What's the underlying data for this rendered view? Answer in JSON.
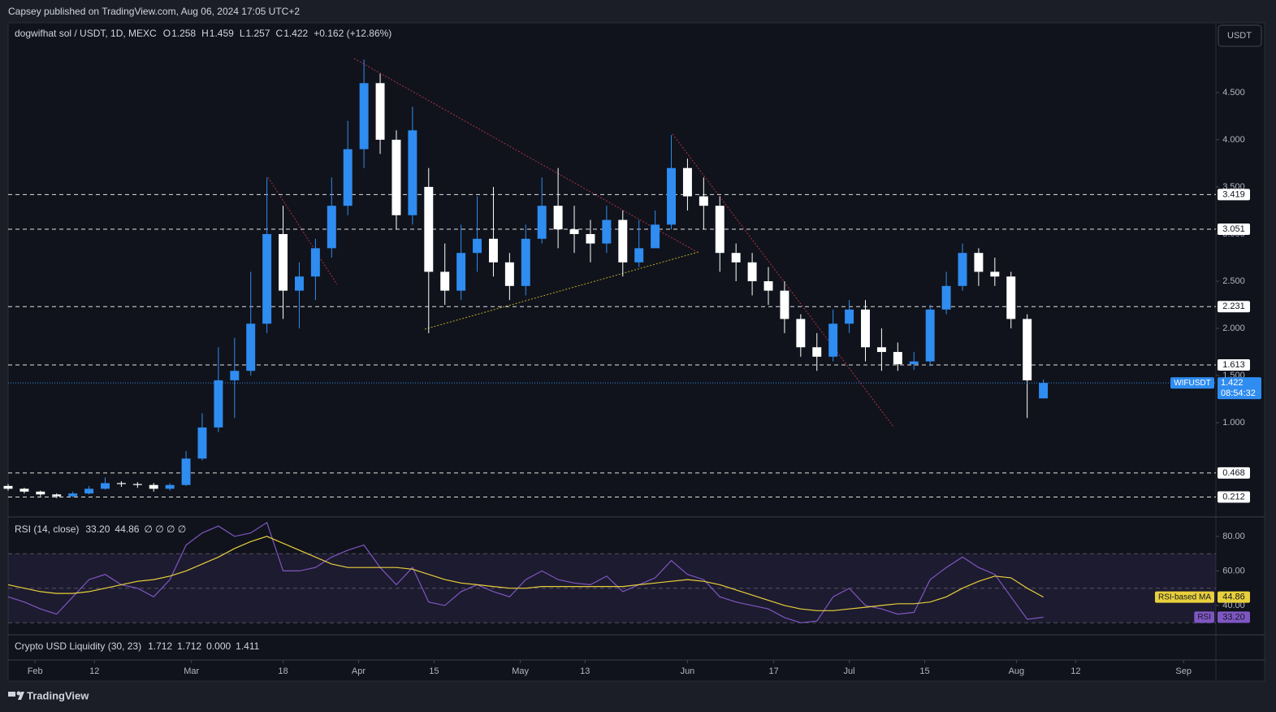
{
  "header": {
    "publisher": "Capsey published on TradingView.com, Aug 06, 2024 17:05 UTC+2",
    "currency_button": "USDT"
  },
  "footer": {
    "brand": "TradingView"
  },
  "chart_data": [
    {
      "type": "candlestick",
      "title": "dogwifhat sol / USDT, 1D, MEXC",
      "ohlc_letters": [
        "O",
        "H",
        "L",
        "C"
      ],
      "change_label": "+0.162 (+12.86%)",
      "symbol": "WIFUSDT",
      "countdown": "08:54:32",
      "up_color": "#2f8cf0",
      "down_color": "#ffffff",
      "x": [
        "2024-01-27",
        "2024-01-30",
        "2024-02-02",
        "2024-02-05",
        "2024-02-08",
        "2024-02-11",
        "2024-02-14",
        "2024-02-17",
        "2024-02-20",
        "2024-02-23",
        "2024-02-26",
        "2024-02-29",
        "2024-03-03",
        "2024-03-06",
        "2024-03-09",
        "2024-03-12",
        "2024-03-15",
        "2024-03-18",
        "2024-03-21",
        "2024-03-24",
        "2024-03-27",
        "2024-03-30",
        "2024-04-02",
        "2024-04-05",
        "2024-04-08",
        "2024-04-11",
        "2024-04-14",
        "2024-04-17",
        "2024-04-20",
        "2024-04-23",
        "2024-04-26",
        "2024-04-29",
        "2024-05-02",
        "2024-05-05",
        "2024-05-08",
        "2024-05-11",
        "2024-05-14",
        "2024-05-17",
        "2024-05-20",
        "2024-05-23",
        "2024-05-26",
        "2024-05-29",
        "2024-06-01",
        "2024-06-04",
        "2024-06-07",
        "2024-06-10",
        "2024-06-13",
        "2024-06-16",
        "2024-06-19",
        "2024-06-22",
        "2024-06-25",
        "2024-06-28",
        "2024-07-01",
        "2024-07-04",
        "2024-07-07",
        "2024-07-10",
        "2024-07-13",
        "2024-07-16",
        "2024-07-19",
        "2024-07-22",
        "2024-07-25",
        "2024-07-28",
        "2024-07-31",
        "2024-08-03",
        "2024-08-06"
      ],
      "open": [
        0.33,
        0.3,
        0.27,
        0.24,
        0.22,
        0.25,
        0.3,
        0.36,
        0.35,
        0.34,
        0.3,
        0.34,
        0.62,
        0.95,
        1.45,
        1.55,
        2.05,
        3.0,
        2.4,
        2.55,
        2.85,
        3.3,
        3.9,
        4.6,
        4.0,
        3.2,
        3.5,
        2.6,
        2.4,
        2.8,
        2.95,
        2.7,
        2.45,
        2.95,
        3.3,
        3.05,
        3.0,
        2.9,
        3.15,
        2.7,
        2.85,
        3.1,
        3.7,
        3.4,
        3.3,
        2.8,
        2.7,
        2.5,
        2.4,
        2.1,
        1.8,
        1.7,
        2.05,
        2.2,
        1.8,
        1.75,
        1.62,
        1.65,
        2.2,
        2.45,
        2.8,
        2.6,
        2.55,
        2.1,
        1.258
      ],
      "high": [
        0.35,
        0.31,
        0.28,
        0.25,
        0.27,
        0.33,
        0.42,
        0.38,
        0.37,
        0.36,
        0.36,
        0.7,
        1.1,
        1.8,
        1.9,
        2.6,
        3.6,
        3.3,
        2.7,
        2.95,
        3.6,
        4.2,
        4.85,
        4.7,
        4.1,
        4.35,
        3.7,
        2.9,
        3.1,
        3.4,
        3.5,
        2.8,
        3.1,
        3.6,
        3.7,
        3.3,
        3.15,
        3.3,
        3.25,
        3.15,
        3.25,
        4.05,
        3.8,
        3.6,
        3.4,
        2.9,
        2.8,
        2.65,
        2.5,
        2.15,
        1.95,
        2.2,
        2.3,
        2.3,
        2.0,
        1.85,
        1.75,
        2.25,
        2.6,
        2.9,
        2.85,
        2.75,
        2.6,
        2.15,
        1.459
      ],
      "low": [
        0.28,
        0.25,
        0.22,
        0.2,
        0.21,
        0.24,
        0.29,
        0.32,
        0.31,
        0.27,
        0.28,
        0.33,
        0.6,
        0.9,
        1.05,
        1.5,
        1.95,
        2.1,
        2.0,
        2.3,
        2.75,
        3.2,
        3.7,
        3.85,
        3.05,
        3.1,
        1.95,
        2.25,
        2.3,
        2.6,
        2.55,
        2.3,
        2.35,
        2.9,
        2.85,
        2.8,
        2.7,
        2.8,
        2.55,
        2.65,
        2.9,
        3.05,
        3.25,
        3.05,
        2.6,
        2.5,
        2.35,
        2.25,
        1.95,
        1.7,
        1.55,
        1.65,
        1.95,
        1.65,
        1.55,
        1.55,
        1.56,
        1.6,
        2.15,
        2.4,
        2.45,
        2.45,
        2.0,
        1.05,
        1.257
      ],
      "close": [
        0.3,
        0.27,
        0.24,
        0.22,
        0.25,
        0.3,
        0.36,
        0.35,
        0.34,
        0.3,
        0.34,
        0.62,
        0.95,
        1.45,
        1.55,
        2.05,
        3.0,
        2.4,
        2.55,
        2.85,
        3.3,
        3.9,
        4.6,
        4.0,
        3.2,
        4.1,
        2.6,
        2.4,
        2.8,
        2.95,
        2.7,
        2.45,
        2.95,
        3.3,
        3.05,
        3.0,
        2.9,
        3.15,
        2.7,
        2.85,
        3.1,
        3.7,
        3.4,
        3.3,
        2.8,
        2.7,
        2.5,
        2.4,
        2.1,
        1.8,
        1.7,
        2.05,
        2.2,
        1.8,
        1.75,
        1.62,
        1.65,
        2.2,
        2.45,
        2.8,
        2.6,
        2.55,
        2.1,
        1.45,
        1.422
      ],
      "levels": [
        3.419,
        3.051,
        2.231,
        1.613,
        0.468,
        0.212
      ],
      "ylim": [
        0.01,
        5.24
      ],
      "yticks": [
        {
          "value": 1,
          "label": "1.000"
        },
        {
          "value": 1.5,
          "label": "1.500"
        },
        {
          "value": 2,
          "label": "2.000"
        },
        {
          "value": 2.5,
          "label": "2.500"
        },
        {
          "value": 3,
          "label": "3.000"
        },
        {
          "value": 3.5,
          "label": "3.500"
        },
        {
          "value": 4,
          "label": "4.000"
        },
        {
          "value": 4.5,
          "label": "4.500"
        }
      ],
      "xlim": [
        "2024-01-27",
        "2024-09-07"
      ],
      "xticks": [
        {
          "value": "2024-02-01",
          "label": "Feb"
        },
        {
          "value": "2024-02-12",
          "label": "12"
        },
        {
          "value": "2024-03-01",
          "label": "Mar"
        },
        {
          "value": "2024-03-18",
          "label": "18"
        },
        {
          "value": "2024-04-01",
          "label": "Apr"
        },
        {
          "value": "2024-04-15",
          "label": "15"
        },
        {
          "value": "2024-05-01",
          "label": "May"
        },
        {
          "value": "2024-05-13",
          "label": "13"
        },
        {
          "value": "2024-06-01",
          "label": "Jun"
        },
        {
          "value": "2024-06-17",
          "label": "17"
        },
        {
          "value": "2024-07-01",
          "label": "Jul"
        },
        {
          "value": "2024-07-15",
          "label": "15"
        },
        {
          "value": "2024-08-01",
          "label": "Aug"
        },
        {
          "value": "2024-08-12",
          "label": "12"
        },
        {
          "value": "2024-09-01",
          "label": "Sep"
        }
      ]
    },
    {
      "type": "line",
      "title": "RSI (14, close)",
      "symbols": "∅ ∅ ∅ ∅",
      "x": [
        "2024-01-27",
        "2024-01-30",
        "2024-02-02",
        "2024-02-05",
        "2024-02-08",
        "2024-02-11",
        "2024-02-14",
        "2024-02-17",
        "2024-02-20",
        "2024-02-23",
        "2024-02-26",
        "2024-02-29",
        "2024-03-03",
        "2024-03-06",
        "2024-03-09",
        "2024-03-12",
        "2024-03-15",
        "2024-03-18",
        "2024-03-21",
        "2024-03-24",
        "2024-03-27",
        "2024-03-30",
        "2024-04-02",
        "2024-04-05",
        "2024-04-08",
        "2024-04-11",
        "2024-04-14",
        "2024-04-17",
        "2024-04-20",
        "2024-04-23",
        "2024-04-26",
        "2024-04-29",
        "2024-05-02",
        "2024-05-05",
        "2024-05-08",
        "2024-05-11",
        "2024-05-14",
        "2024-05-17",
        "2024-05-20",
        "2024-05-23",
        "2024-05-26",
        "2024-05-29",
        "2024-06-01",
        "2024-06-04",
        "2024-06-07",
        "2024-06-10",
        "2024-06-13",
        "2024-06-16",
        "2024-06-19",
        "2024-06-22",
        "2024-06-25",
        "2024-06-28",
        "2024-07-01",
        "2024-07-04",
        "2024-07-07",
        "2024-07-10",
        "2024-07-13",
        "2024-07-16",
        "2024-07-19",
        "2024-07-22",
        "2024-07-25",
        "2024-07-28",
        "2024-07-31",
        "2024-08-03",
        "2024-08-06"
      ],
      "series": [
        {
          "name": "RSI",
          "color": "#7e57c2",
          "last_label": "33.20",
          "values": [
            45,
            42,
            38,
            35,
            45,
            55,
            58,
            52,
            50,
            45,
            55,
            75,
            82,
            86,
            80,
            82,
            88,
            60,
            60,
            62,
            68,
            72,
            75,
            62,
            52,
            62,
            42,
            40,
            48,
            52,
            48,
            45,
            55,
            60,
            55,
            53,
            52,
            57,
            48,
            52,
            56,
            66,
            58,
            55,
            45,
            42,
            40,
            38,
            33,
            30,
            31,
            45,
            50,
            40,
            38,
            35,
            36,
            55,
            62,
            68,
            62,
            58,
            45,
            32,
            33.2
          ]
        },
        {
          "name": "RSI-based MA",
          "color": "#e8cf3c",
          "last_label": "44.86",
          "values": [
            52,
            50,
            48,
            47,
            47,
            48,
            50,
            52,
            54,
            55,
            57,
            60,
            64,
            68,
            73,
            77,
            80,
            76,
            72,
            68,
            64,
            62,
            62,
            62,
            62,
            61,
            58,
            55,
            53,
            52,
            51,
            50,
            50,
            51,
            51,
            51,
            51,
            51,
            51,
            52,
            53,
            54,
            55,
            54,
            52,
            49,
            46,
            43,
            40,
            38,
            37,
            37,
            38,
            39,
            40,
            41,
            41,
            42,
            45,
            50,
            54,
            57,
            56,
            50,
            44.86
          ]
        }
      ],
      "band": [
        30,
        70
      ],
      "midline": 50,
      "ylim": [
        23.5,
        90.8
      ],
      "yticks": [
        {
          "value": 40,
          "label": "40.00"
        },
        {
          "value": 60,
          "label": "60.00"
        },
        {
          "value": 80,
          "label": "80.00"
        }
      ]
    },
    {
      "type": "indicator",
      "title": "Crypto USD Liquidity (30, 23)",
      "values": [
        1.712,
        1.712,
        0,
        1.411
      ],
      "value_labels": [
        "1.712",
        "1.712",
        "0.000",
        "1.411"
      ],
      "colors": [
        "#f0504b",
        "#f0504b",
        "#787b86",
        "#f57c1f"
      ]
    }
  ]
}
